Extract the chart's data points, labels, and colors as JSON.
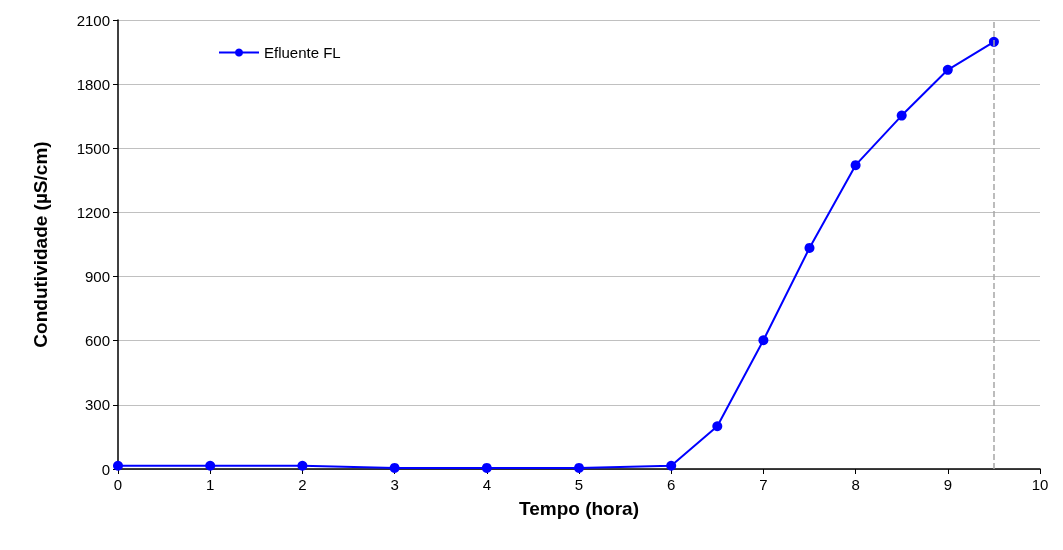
{
  "chart_data": {
    "type": "line",
    "xlabel": "Tempo (hora)",
    "ylabel": "Condutividade (µS/cm)",
    "x": [
      0,
      1,
      2,
      3,
      4,
      5,
      6,
      6.5,
      7,
      7.5,
      8,
      8.5,
      9,
      9.5
    ],
    "series": [
      {
        "name": "Efluente FL",
        "color": "#0000ff",
        "values": [
          15,
          15,
          15,
          5,
          5,
          5,
          15,
          200,
          602,
          1034,
          1421,
          1653,
          1867,
          1998
        ]
      }
    ],
    "xlim": [
      0,
      10
    ],
    "xticks": [
      0,
      1,
      2,
      3,
      4,
      5,
      6,
      7,
      8,
      9,
      10
    ],
    "ylim": [
      0,
      2100
    ],
    "yticks": [
      0,
      300,
      600,
      900,
      1200,
      1500,
      1800,
      2100
    ],
    "ref_lines": [
      {
        "axis": "x",
        "value": 9.5,
        "color": "#a6a6a6",
        "line_style": "dashed"
      }
    ],
    "grid": "y",
    "legend": "top left",
    "marker": "circle",
    "line_style": "solid"
  }
}
